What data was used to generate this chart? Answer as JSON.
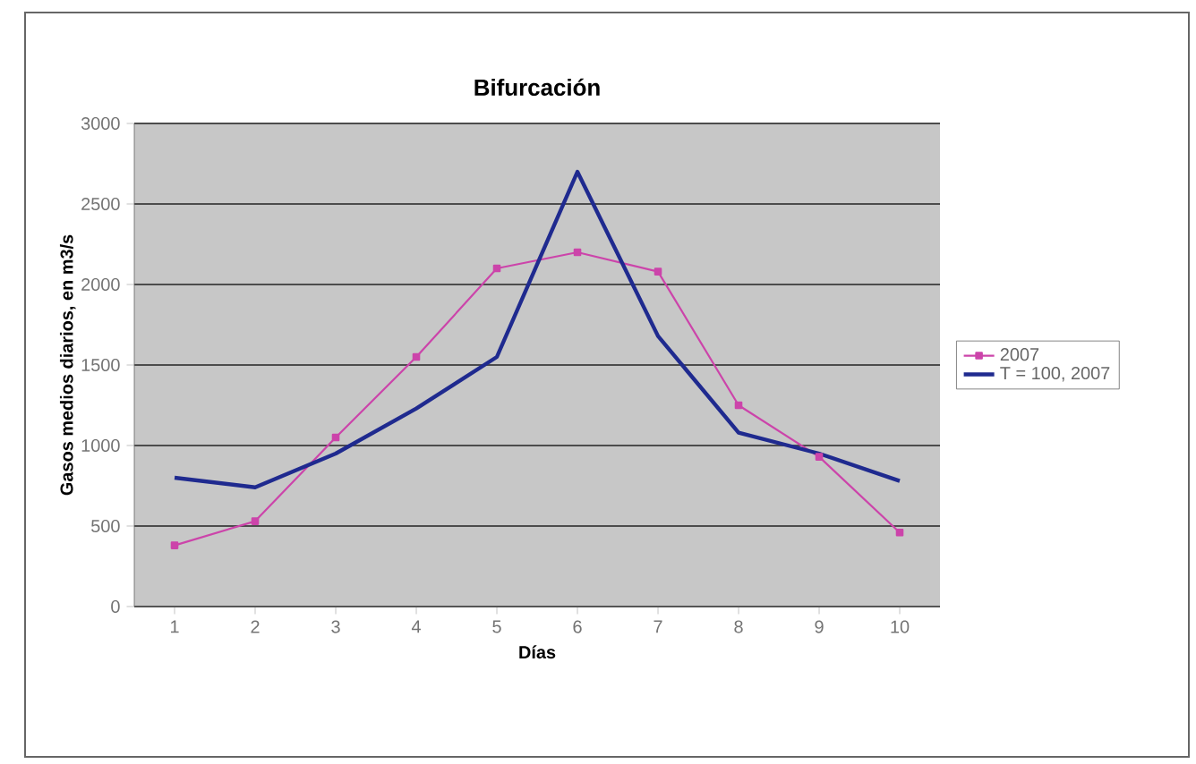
{
  "chart_data": {
    "type": "line",
    "title": "Bifurcación",
    "xlabel": "Días",
    "ylabel": "Gasos medios diarios, en m3/s",
    "categories": [
      "1",
      "2",
      "3",
      "4",
      "5",
      "6",
      "7",
      "8",
      "9",
      "10"
    ],
    "series": [
      {
        "name": "2007",
        "color": "#cc44aa",
        "marker": "square",
        "values": [
          380,
          530,
          1050,
          1550,
          2100,
          2200,
          2080,
          1250,
          930,
          460
        ]
      },
      {
        "name": "T = 100, 2007",
        "color": "#1f2a8f",
        "marker": "none",
        "values": [
          800,
          740,
          950,
          1230,
          1550,
          2700,
          1680,
          1080,
          950,
          780
        ]
      }
    ],
    "ylim": [
      0,
      3000
    ],
    "yticks": [
      0,
      500,
      1000,
      1500,
      2000,
      2500,
      3000
    ],
    "grid": "y",
    "legend": "right"
  }
}
